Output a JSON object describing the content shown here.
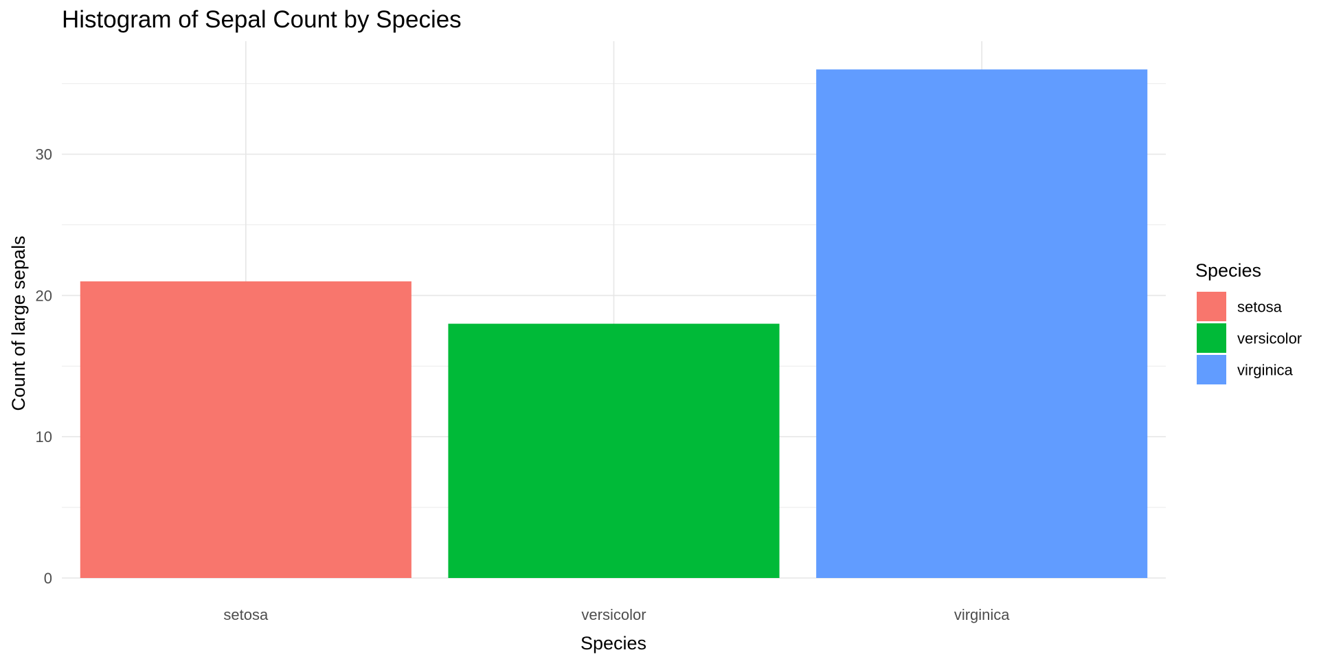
{
  "chart_data": {
    "type": "bar",
    "title": "Histogram of Sepal Count by Species",
    "xlabel": "Species",
    "ylabel": "Count of large sepals",
    "categories": [
      "setosa",
      "versicolor",
      "virginica"
    ],
    "values": [
      21,
      18,
      36
    ],
    "colors": [
      "#F8766D",
      "#00BA38",
      "#619CFF"
    ],
    "ylim": [
      0,
      38
    ],
    "yticks": [
      0,
      10,
      20,
      30
    ],
    "grid": true,
    "legend": {
      "title": "Species",
      "position": "right",
      "entries": [
        "setosa",
        "versicolor",
        "virginica"
      ]
    }
  }
}
